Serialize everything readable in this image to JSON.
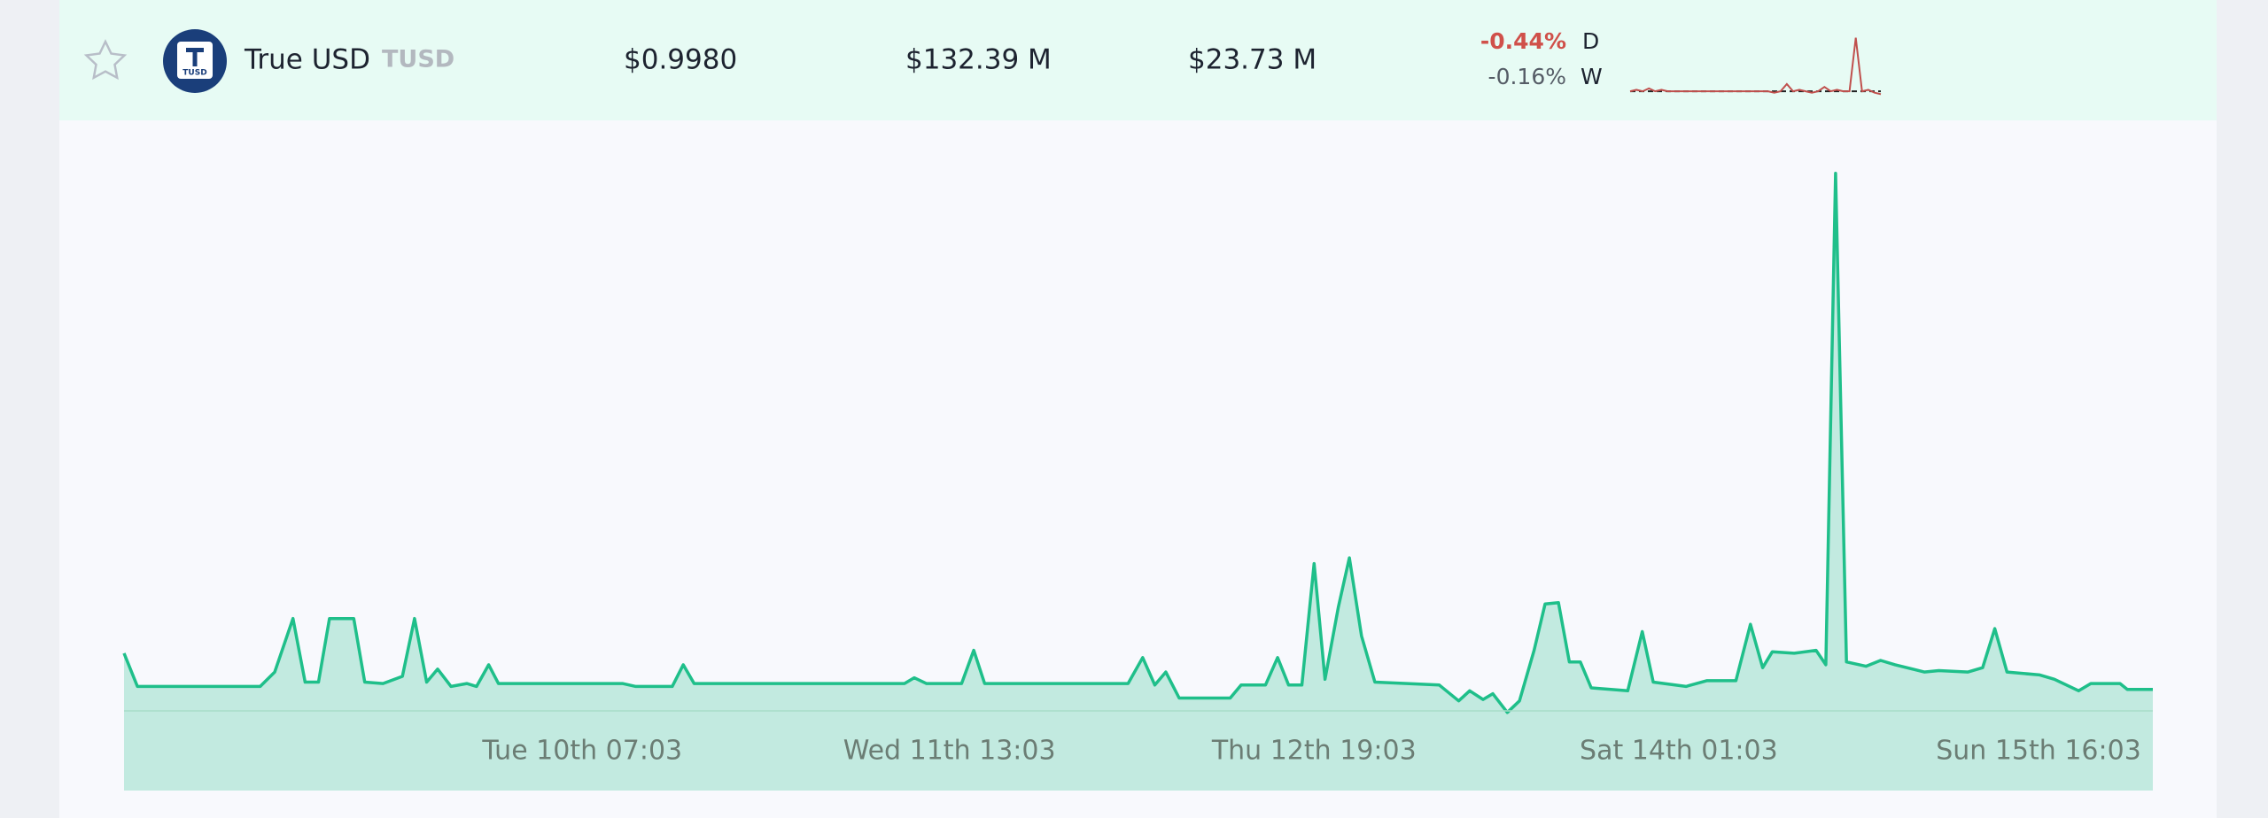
{
  "row": {
    "name": "True USD",
    "symbol": "TUSD",
    "logo_text": "TUSD",
    "price": "$0.9980",
    "market_cap": "$132.39 M",
    "volume": "$23.73 M",
    "change_day": "-0.44%",
    "day_label": "D",
    "change_week": "-0.16%",
    "week_label": "W",
    "sparkline": {
      "color": "#c0504d",
      "ylim": [
        -3,
        38
      ],
      "values": [
        0,
        1,
        0,
        2,
        0,
        1,
        0,
        0,
        0,
        0,
        0,
        0,
        0,
        0,
        0,
        0,
        0,
        0,
        0,
        0,
        0,
        0,
        0,
        -1,
        0,
        5,
        0,
        1,
        0,
        -1,
        0,
        3,
        0,
        1,
        0,
        0,
        37,
        0,
        1,
        -1,
        -2
      ]
    }
  },
  "chart_data": {
    "type": "area",
    "x": [
      0,
      1.1,
      11.2,
      12.4,
      13.9,
      14.9,
      16.0,
      16.9,
      18.9,
      19.8,
      21.3,
      22.9,
      23.9,
      24.9,
      25.8,
      26.9,
      28.2,
      29.0,
      30.0,
      30.8,
      32.6,
      41.0,
      42.1,
      45.1,
      46.0,
      46.9,
      55.2,
      64.2,
      65.0,
      66.0,
      68.9,
      69.9,
      70.8,
      82.6,
      83.8,
      84.8,
      85.7,
      86.8,
      91.0,
      91.9,
      93.9,
      94.9,
      95.8,
      96.9,
      97.9,
      98.8,
      99.9,
      100.8,
      101.8,
      102.9,
      108.2,
      109.8,
      110.7,
      111.8,
      112.6,
      113.8,
      114.8,
      116.0,
      116.9,
      118.0,
      118.9,
      119.8,
      120.7,
      123.7,
      124.9,
      125.8,
      128.5,
      130.2,
      132.6,
      133.8,
      134.8,
      135.6,
      137.4,
      139.2,
      140.0,
      140.8,
      141.7,
      143.3,
      144.5,
      145.7,
      148.1,
      149.3,
      151.7,
      152.9,
      153.9,
      154.9,
      157.6,
      158.8,
      160.8,
      161.8,
      164.2,
      164.8,
      166.9
    ],
    "series": [
      {
        "color": "#1fbf8a",
        "values": [
          40,
          17,
          17,
          27,
          64,
          20,
          20,
          64,
          64,
          20,
          19,
          24,
          64,
          20,
          29,
          17,
          19,
          17,
          32,
          19,
          19,
          19,
          17,
          17,
          32,
          19,
          19,
          19,
          23,
          19,
          19,
          42,
          19,
          19,
          37,
          18,
          27,
          9,
          9,
          18,
          18,
          37,
          18,
          18,
          102,
          22,
          72,
          106,
          52,
          20,
          18,
          7,
          14,
          8,
          12,
          -1,
          7,
          42,
          74,
          75,
          34,
          34,
          16,
          14,
          55,
          20,
          17,
          21,
          21,
          60,
          30,
          41,
          40,
          42,
          32,
          372,
          34,
          31,
          35,
          32,
          27,
          28,
          27,
          30,
          57,
          27,
          25,
          22,
          14,
          19,
          19,
          15,
          15
        ]
      }
    ],
    "xlim": [
      0,
      166.9
    ],
    "ylim": [
      -55,
      392
    ],
    "xticks": [
      {
        "value": 37.7,
        "label": "Tue 10th 07:03"
      },
      {
        "value": 67.9,
        "label": "Wed 11th 13:03"
      },
      {
        "value": 97.9,
        "label": "Thu 12th 19:03"
      },
      {
        "value": 127.9,
        "label": "Sat 14th 01:03"
      },
      {
        "value": 157.5,
        "label": "Sun 15th 16:03"
      }
    ]
  }
}
